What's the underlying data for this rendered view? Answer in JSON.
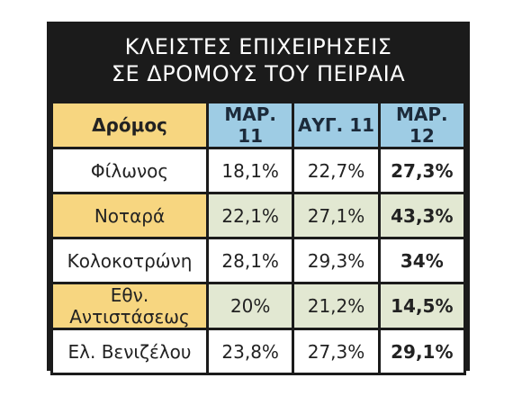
{
  "chart_data": {
    "type": "table",
    "title_lines": [
      "ΚΛΕΙΣΤΕΣ ΕΠΙΧΕΙΡΗΣΕΙΣ",
      "ΣΕ ΔΡΟΜΟΥΣ ΤΟΥ ΠΕΙΡΑΙΑ"
    ],
    "row_header": "Δρόμος",
    "columns": [
      "ΜΑΡ. 11",
      "ΑΥΓ. 11",
      "ΜΑΡ. 12"
    ],
    "rows": [
      {
        "name": "Φίλωνος",
        "values": [
          "18,1%",
          "22,7%",
          "27,3%"
        ],
        "numeric": [
          18.1,
          22.7,
          27.3
        ]
      },
      {
        "name": "Νοταρά",
        "values": [
          "22,1%",
          "27,1%",
          "43,3%"
        ],
        "numeric": [
          22.1,
          27.1,
          43.3
        ]
      },
      {
        "name": "Κολοκοτρώνη",
        "values": [
          "28,1%",
          "29,3%",
          "34%"
        ],
        "numeric": [
          28.1,
          29.3,
          34
        ]
      },
      {
        "name": "Εθν. Αντιστάσεως",
        "values": [
          "20%",
          "21,2%",
          "14,5%"
        ],
        "numeric": [
          20,
          21.2,
          14.5
        ]
      },
      {
        "name": "Ελ. Βενιζέλου",
        "values": [
          "23,8%",
          "27,3%",
          "29,1%"
        ],
        "numeric": [
          23.8,
          27.3,
          29.1
        ]
      }
    ]
  },
  "colors": {
    "frame": "#1b1b1b",
    "title_text": "#ffffff",
    "header_road": "#f7d680",
    "header_period": "#9ecce4",
    "highlight_road": "#f7d680",
    "highlight_value": "#e2e8d2",
    "plain": "#ffffff"
  }
}
